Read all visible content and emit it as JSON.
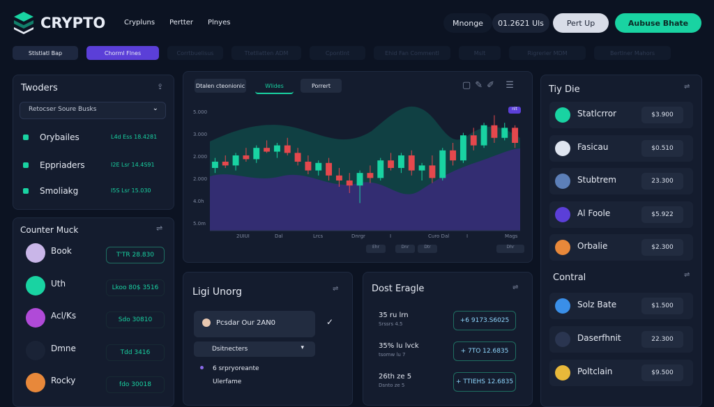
{
  "header": {
    "logo": "CRYPTO",
    "nav": [
      "Crypluns",
      "Pertter",
      "Plnyes"
    ],
    "manage": "Mnonge",
    "balance": "01.2621 Uls",
    "signup": "Pert Up",
    "action": "Aubuse Bhate"
  },
  "tabs": [
    "Stlstlatl Bap",
    "Chorml Flnes",
    "Corrtbuelisus",
    "Ttetllatten ADM",
    "Cpontlnt",
    "Ehid Fan Commentl",
    "Mslt",
    "Rigrerier MDM",
    "Bertlner Mahors"
  ],
  "traders": {
    "title": "Twoders",
    "select": "Retocser Soure Busks",
    "items": [
      {
        "name": "Orybailes",
        "value": "L4d Ess 18.4281"
      },
      {
        "name": "Eppriaders",
        "value": "I2E Lsr 14.4S91"
      },
      {
        "name": "Smoliakg",
        "value": "I5S Lsr 15.030"
      }
    ]
  },
  "counter": {
    "title": "Counter Muck",
    "items": [
      {
        "name": "Book",
        "value": "T'TR 28.830"
      },
      {
        "name": "Uth",
        "value": "Lkoo 80$ 3516"
      },
      {
        "name": "Acl/Ks",
        "value": "Sdo 30810"
      },
      {
        "name": "Dmne",
        "value": "Tdd 3416"
      },
      {
        "name": "Rocky",
        "value": "fdo 30018"
      }
    ]
  },
  "chart_panel": {
    "tabs": [
      "Dtalen cteonionic",
      "Wlides",
      "Porrert"
    ],
    "badge": "nlt",
    "footer": [
      "Ehr",
      "Dnr",
      "Dtr",
      "Dhr"
    ],
    "chart_data": {
      "type": "candlestick",
      "up_color": "#19d3a2",
      "down_color": "#e5484d",
      "ylim": [
        0,
        100
      ],
      "y_labels": [
        "5.000",
        "3.000",
        "2.000",
        "2.000",
        "4.0h",
        "5.0m"
      ],
      "x_labels": [
        "2UIUI",
        "Dal",
        "Lrcs",
        "Dnrgr",
        "I",
        "Curo Dal",
        "I",
        "Mags"
      ],
      "ohlc": [
        [
          50,
          58,
          46,
          55
        ],
        [
          55,
          60,
          50,
          52
        ],
        [
          52,
          62,
          48,
          60
        ],
        [
          60,
          66,
          55,
          57
        ],
        [
          57,
          68,
          54,
          66
        ],
        [
          66,
          72,
          62,
          63
        ],
        [
          63,
          70,
          58,
          68
        ],
        [
          68,
          74,
          60,
          62
        ],
        [
          62,
          66,
          52,
          55
        ],
        [
          55,
          60,
          45,
          48
        ],
        [
          48,
          56,
          44,
          54
        ],
        [
          54,
          58,
          40,
          44
        ],
        [
          44,
          50,
          35,
          40
        ],
        [
          40,
          46,
          30,
          36
        ],
        [
          36,
          48,
          22,
          46
        ],
        [
          46,
          52,
          38,
          42
        ],
        [
          42,
          58,
          40,
          56
        ],
        [
          56,
          62,
          48,
          50
        ],
        [
          50,
          62,
          46,
          60
        ],
        [
          60,
          64,
          44,
          48
        ],
        [
          48,
          54,
          40,
          52
        ],
        [
          52,
          60,
          38,
          42
        ],
        [
          42,
          66,
          40,
          64
        ],
        [
          64,
          70,
          52,
          56
        ],
        [
          56,
          78,
          54,
          76
        ],
        [
          76,
          82,
          64,
          68
        ],
        [
          68,
          86,
          66,
          84
        ],
        [
          84,
          92,
          70,
          74
        ],
        [
          74,
          86,
          72,
          82
        ],
        [
          82,
          84,
          66,
          70
        ]
      ]
    }
  },
  "light": {
    "title": "Ligi Unorg",
    "card": "Pcsdar Our 2AN0",
    "dropdown": "Dsitnecters",
    "list": [
      "6 srpryoreante",
      "Ulerfame"
    ]
  },
  "deals": {
    "title": "Dost Eragle",
    "items": [
      {
        "name": "35 ru lrn",
        "sub": "Srssrs 4.5",
        "value": "+6 9173.S6025"
      },
      {
        "name": "35% lu lvck",
        "sub": "tsomw lu 7",
        "value": "+ 7TO 12.6835"
      },
      {
        "name": "26th ze 5",
        "sub": "Dsnto ze 5",
        "value": "+ TTIEHS 12.6835"
      }
    ]
  },
  "watch": {
    "title": "Tiy Die",
    "items": [
      {
        "name": "Statlcrror",
        "value": "$3.900"
      },
      {
        "name": "Fasicau",
        "value": "$0.510"
      },
      {
        "name": "Stubtrem",
        "value": "23.300"
      },
      {
        "name": "Al Foole",
        "value": "$5.922"
      },
      {
        "name": "Orbalie",
        "value": "$2.300"
      }
    ]
  },
  "central": {
    "title": "Contral",
    "items": [
      {
        "name": "Solz Bate",
        "value": "$1.500"
      },
      {
        "name": "Daserfhnit",
        "value": "22.300"
      },
      {
        "name": "Poltclain",
        "value": "$9.500"
      }
    ]
  }
}
